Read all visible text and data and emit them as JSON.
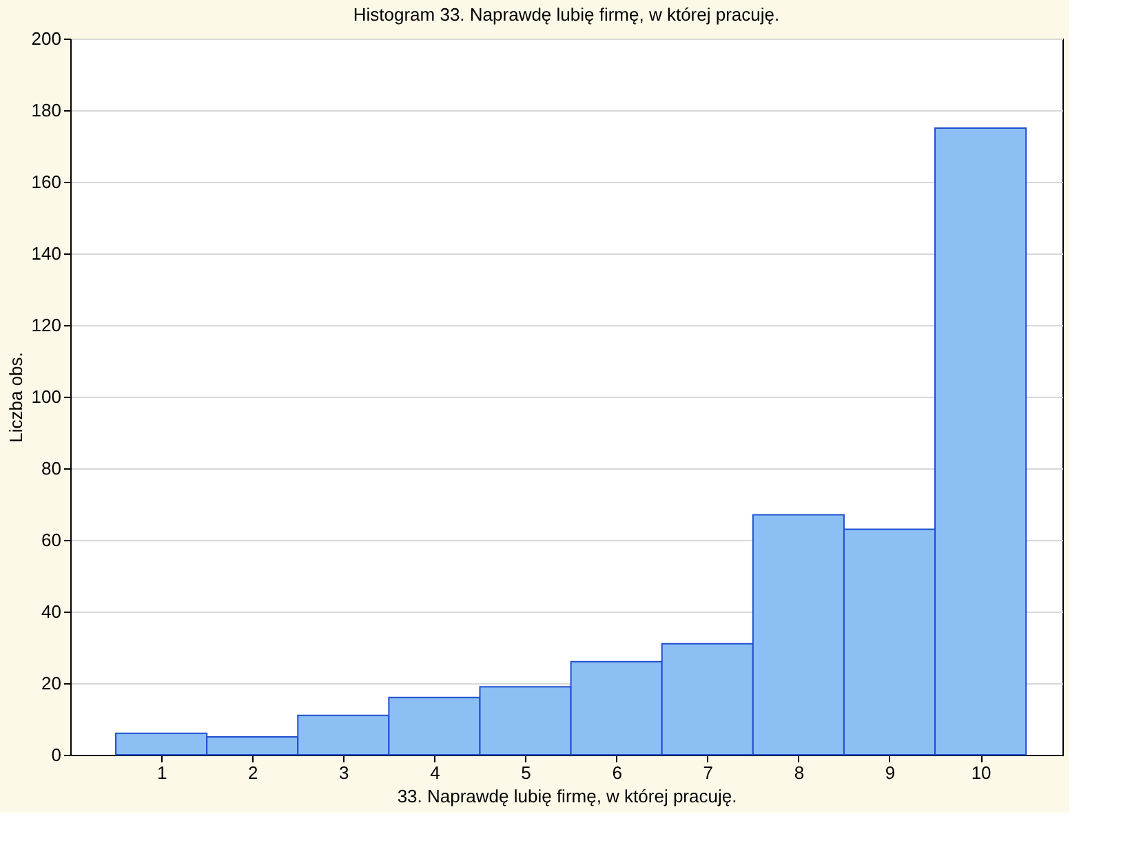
{
  "chart_data": {
    "type": "histogram",
    "title": "Histogram    33. Naprawdę lubię firmę, w której pracuję.",
    "xlabel": "33. Naprawdę lubię firmę, w której pracuję.",
    "ylabel": "Liczba obs.",
    "bins": [
      0.5,
      1.5,
      2.5,
      3.5,
      4.5,
      5.5,
      6.5,
      7.5,
      8.5,
      9.5,
      10.5
    ],
    "values": [
      6,
      5,
      11,
      16,
      19,
      26,
      31,
      67,
      63,
      175
    ],
    "color": "#8cc0f5",
    "xlim": [
      0,
      10.9
    ],
    "xticks": [
      1,
      2,
      3,
      4,
      5,
      6,
      7,
      8,
      9,
      10
    ],
    "ylim": [
      0,
      200
    ],
    "yticks": [
      0,
      20,
      40,
      60,
      80,
      100,
      120,
      140,
      160,
      180,
      200
    ],
    "grid": "y"
  }
}
